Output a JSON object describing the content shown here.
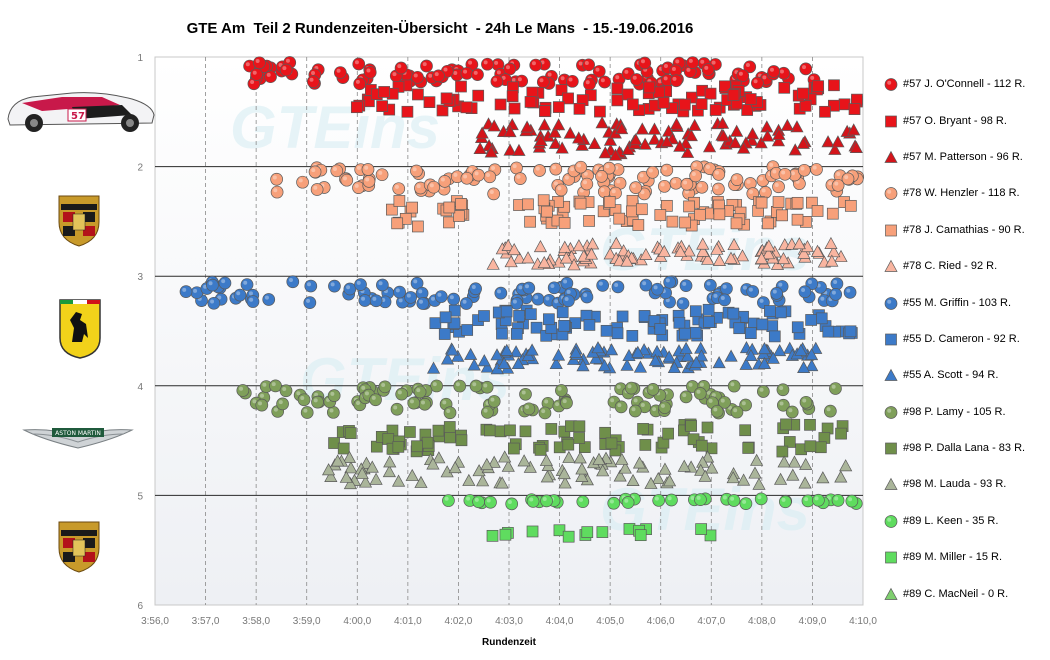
{
  "chart_data": {
    "type": "scatter",
    "title": "GTE Am  Teil 2 Rundenzeiten-Übersicht  - 24h Le Mans  - 15.-19.06.2016",
    "xlabel": "Rundenzeit",
    "ylabel": "",
    "x_tick_labels": [
      "3:56,0",
      "3:57,0",
      "3:58,0",
      "3:59,0",
      "4:00,0",
      "4:01,0",
      "4:02,0",
      "4:03,0",
      "4:04,0",
      "4:05,0",
      "4:06,0",
      "4:07,0",
      "4:08,0",
      "4:09,0",
      "4:10,0"
    ],
    "xlim_seconds": [
      236,
      250
    ],
    "ylim": [
      1,
      6
    ],
    "y_ticks": [
      1,
      2,
      3,
      4,
      5,
      6
    ],
    "x_grid": "dashed vertical at every second",
    "y_grid": "solid horizontal at every integer",
    "legend_position": "right",
    "watermark": "GTEins",
    "series": [
      {
        "name": "#57 J. O'Connell - 112 R.",
        "marker": "circle",
        "color": "#e8141a",
        "y_band": [
          1.05,
          1.25
        ],
        "x_range": [
          237.8,
          249.1
        ],
        "count": 112
      },
      {
        "name": "#57 O. Bryant - 98 R.",
        "marker": "square",
        "color": "#e8141a",
        "y_band": [
          1.25,
          1.5
        ],
        "x_range": [
          239.6,
          249.9
        ],
        "count": 98
      },
      {
        "name": "#57 M. Patterson - 96 R.",
        "marker": "triangle",
        "color": "#d4141a",
        "y_band": [
          1.6,
          1.9
        ],
        "x_range": [
          242.2,
          249.9
        ],
        "count": 96
      },
      {
        "name": "#78 W. Henzler - 118 R.",
        "marker": "circle",
        "color": "#f7a07a",
        "y_band": [
          2.0,
          2.25
        ],
        "x_range": [
          238.3,
          249.9
        ],
        "count": 118
      },
      {
        "name": "#78 J. Camathias - 90 R.",
        "marker": "square",
        "color": "#f7a07a",
        "y_band": [
          2.3,
          2.55
        ],
        "x_range": [
          240.6,
          249.8
        ],
        "count": 90
      },
      {
        "name": "#78 C. Ried - 92 R.",
        "marker": "triangle",
        "color": "#f9b5a0",
        "y_band": [
          2.7,
          2.9
        ],
        "x_range": [
          242.6,
          249.6
        ],
        "count": 92
      },
      {
        "name": "#55 M. Griffin - 103 R.",
        "marker": "circle",
        "color": "#3c7ac8",
        "y_band": [
          3.05,
          3.25
        ],
        "x_range": [
          236.4,
          249.8
        ],
        "count": 103
      },
      {
        "name": "#55 D. Cameron - 92 R.",
        "marker": "square",
        "color": "#3c7ac8",
        "y_band": [
          3.3,
          3.55
        ],
        "x_range": [
          241.5,
          249.8
        ],
        "count": 92
      },
      {
        "name": "#55 A. Scott - 94 R.",
        "marker": "triangle",
        "color": "#3c7ac8",
        "y_band": [
          3.65,
          3.85
        ],
        "x_range": [
          241.5,
          249.2
        ],
        "count": 94
      },
      {
        "name": "#98 P. Lamy - 105 R.",
        "marker": "circle",
        "color": "#7f9f5a",
        "y_band": [
          4.0,
          4.25
        ],
        "x_range": [
          237.7,
          249.5
        ],
        "count": 105
      },
      {
        "name": "#98 P. Dalla Lana - 83 R.",
        "marker": "square",
        "color": "#6f8f4a",
        "y_band": [
          4.35,
          4.6
        ],
        "x_range": [
          239.4,
          249.6
        ],
        "count": 83
      },
      {
        "name": "#98 M. Lauda - 93 R.",
        "marker": "triangle",
        "color": "#aab59a",
        "y_band": [
          4.65,
          4.9
        ],
        "x_range": [
          239.4,
          249.8
        ],
        "count": 93
      },
      {
        "name": "#89 L. Keen - 35 R.",
        "marker": "circle",
        "color": "#5fdc5f",
        "y_band": [
          5.03,
          5.08
        ],
        "x_range": [
          241.5,
          250.0
        ],
        "count": 35
      },
      {
        "name": "#89 M. Miller - 15 R.",
        "marker": "square",
        "color": "#5fdc5f",
        "y_band": [
          5.3,
          5.38
        ],
        "x_range": [
          242.5,
          247.7
        ],
        "count": 15
      },
      {
        "name": "#89 C. MacNeil - 0 R.",
        "marker": "triangle",
        "color": "#7fcf6f",
        "y_band": null,
        "x_range": null,
        "count": 0
      }
    ]
  },
  "logos": [
    {
      "name": "corvette-car-logo",
      "color": "#c8194a"
    },
    {
      "name": "porsche-crest-logo",
      "color": "#c89a2a"
    },
    {
      "name": "ferrari-shield-logo",
      "color": "#f2d21a"
    },
    {
      "name": "aston-martin-wings-logo",
      "color": "#9aa0a4"
    },
    {
      "name": "porsche-crest-logo",
      "color": "#c89a2a"
    }
  ]
}
